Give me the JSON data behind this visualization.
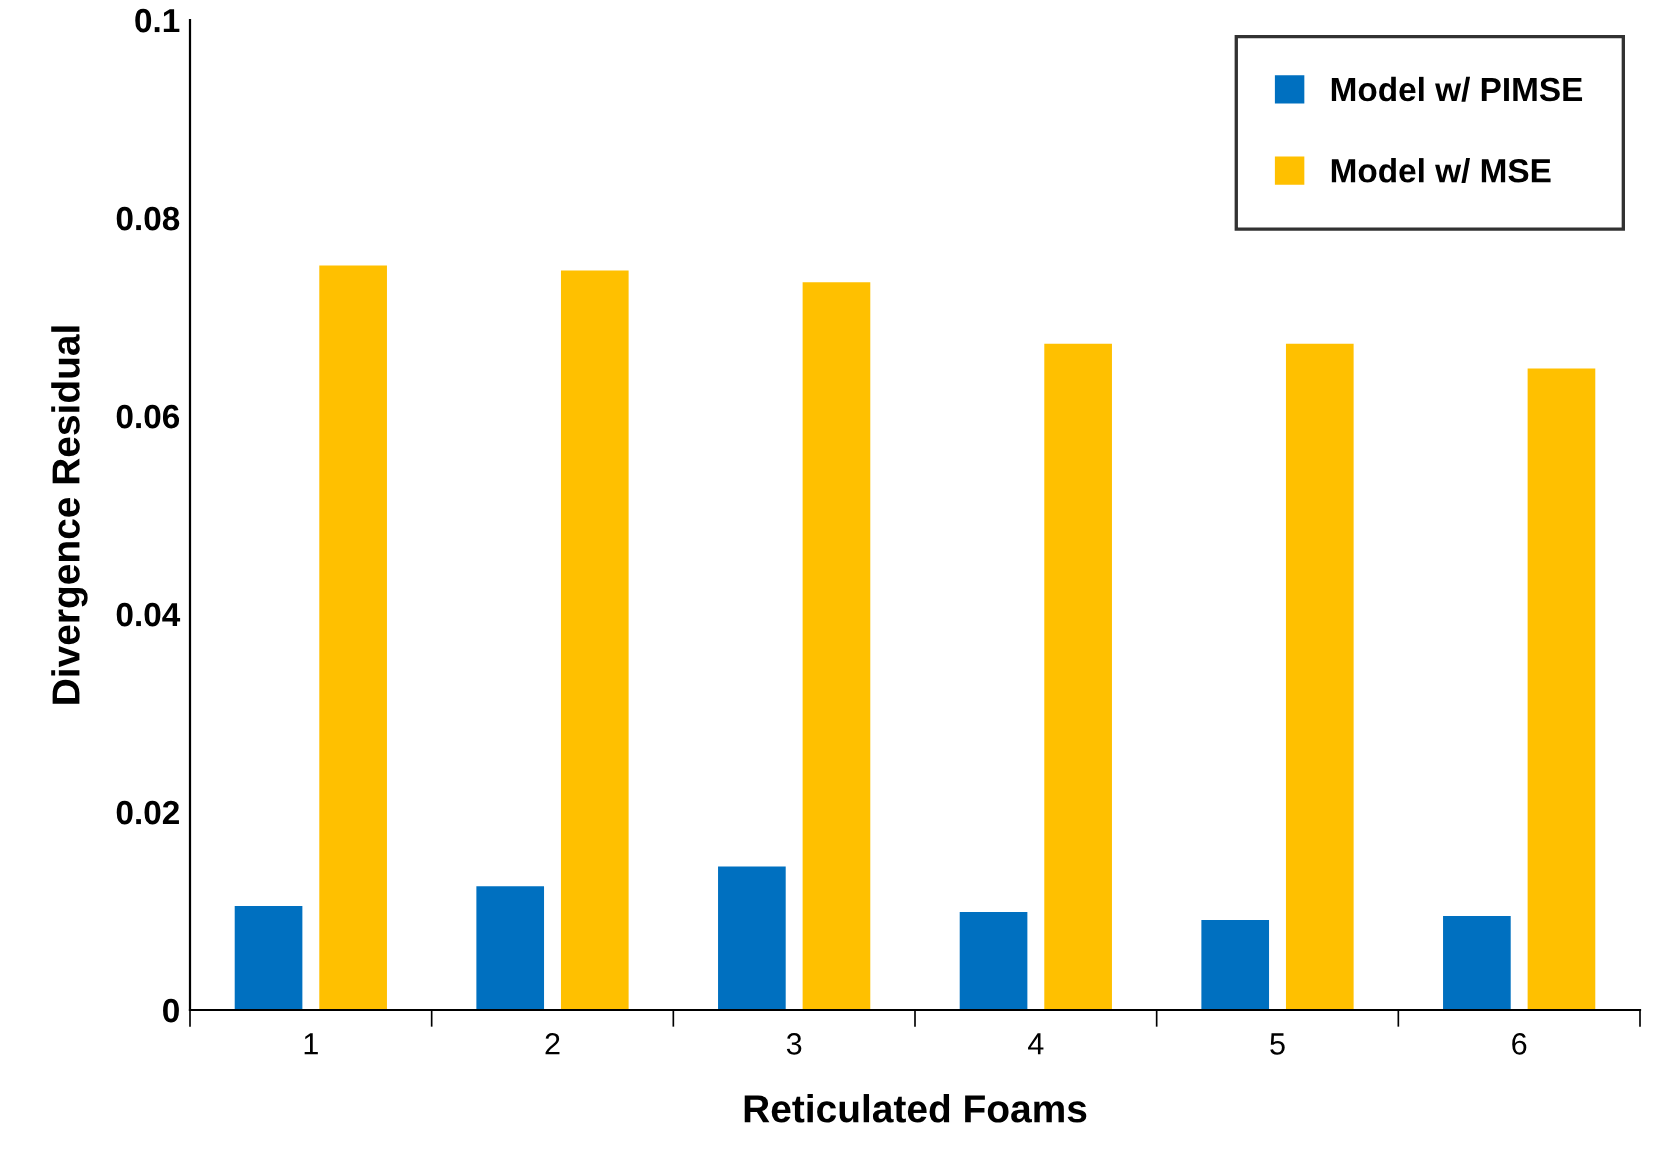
{
  "chart_data": {
    "type": "bar",
    "xlabel": "Reticulated Foams",
    "ylabel": "Divergence Residual",
    "categories": [
      "1",
      "2",
      "3",
      "4",
      "5",
      "6"
    ],
    "series": [
      {
        "name": "Model w/ PIMSE",
        "color": "#0070c0",
        "values": [
          0.0105,
          0.0125,
          0.0145,
          0.0099,
          0.0091,
          0.0095
        ]
      },
      {
        "name": "Model w/ MSE",
        "color": "#ffc000",
        "values": [
          0.0752,
          0.0747,
          0.0735,
          0.0673,
          0.0673,
          0.0648
        ]
      }
    ],
    "ylim": [
      0,
      0.1
    ],
    "yticks": [
      0,
      0.02,
      0.04,
      0.06,
      0.08,
      0.1
    ],
    "grid": false,
    "legend": "top right"
  }
}
